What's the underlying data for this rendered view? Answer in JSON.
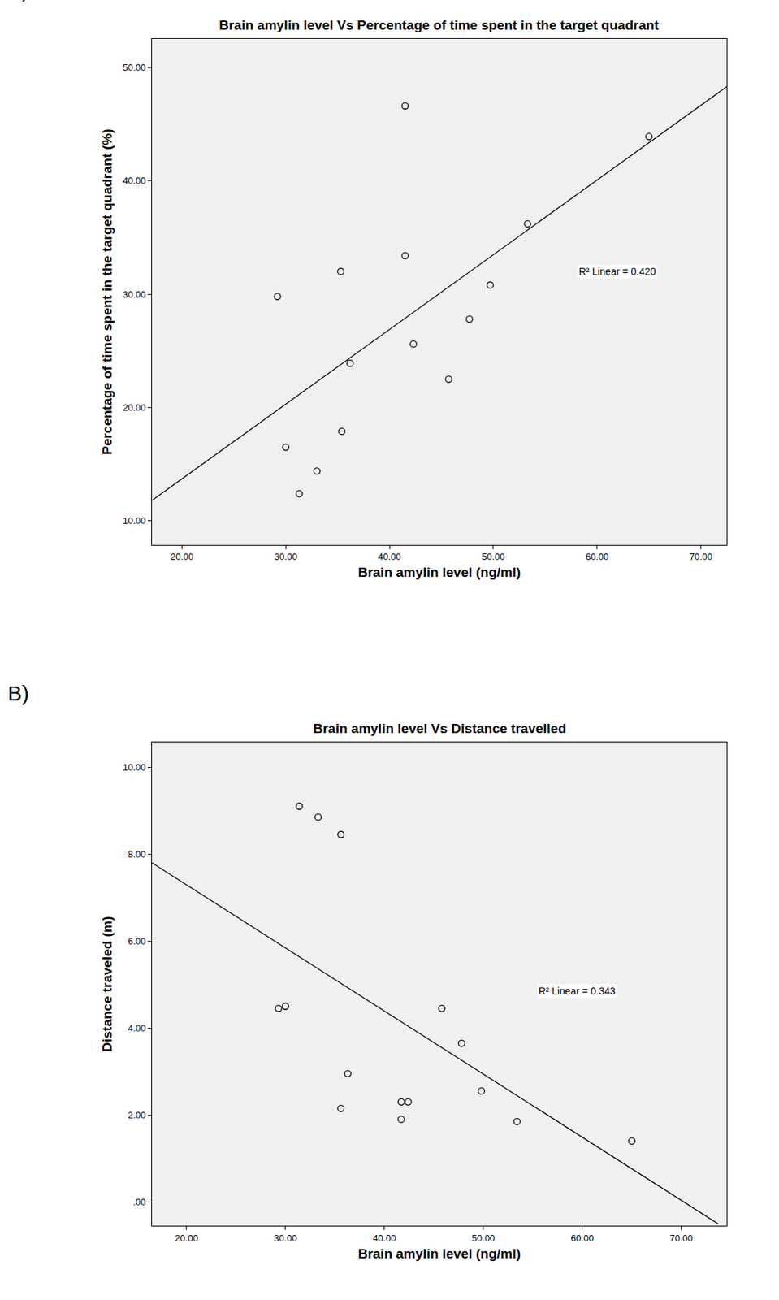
{
  "chart_data": [
    {
      "type": "scatter",
      "panel_label": "A)",
      "title": "Brain amylin level Vs Percentage of time spent in the target quadrant",
      "x_label": "Brain amylin level (ng/ml)",
      "y_label": "Percentage of time spent in the target quadrant (%)",
      "series": [
        {
          "type": "scatter",
          "marker": "open circle",
          "color": "#000000",
          "x": [
            29.2,
            30.0,
            31.3,
            33.0,
            35.3,
            35.4,
            36.2,
            41.5,
            41.5,
            42.3,
            45.7,
            47.7,
            49.7,
            53.3,
            65.0
          ],
          "values": [
            29.8,
            16.5,
            12.4,
            14.4,
            32.0,
            17.9,
            23.9,
            46.6,
            33.4,
            25.6,
            22.5,
            27.8,
            30.8,
            36.2,
            43.9
          ]
        },
        {
          "type": "line",
          "line_style": "solid",
          "color": "#000000",
          "x": [
            17.1,
            72.5
          ],
          "values": [
            11.8,
            48.3
          ]
        }
      ],
      "annotations": [
        "R² Linear = 0.420"
      ],
      "xlim": [
        17.1,
        72.5
      ],
      "ylim": [
        7.9,
        52.5
      ],
      "xticks": [
        {
          "value": 20,
          "label": "20.00"
        },
        {
          "value": 30,
          "label": "30.00"
        },
        {
          "value": 40,
          "label": "40.00"
        },
        {
          "value": 50,
          "label": "50.00"
        },
        {
          "value": 60,
          "label": "60.00"
        },
        {
          "value": 70,
          "label": "70.00"
        }
      ],
      "yticks": [
        {
          "value": 10,
          "label": "10.00"
        },
        {
          "value": 20,
          "label": "20.00"
        },
        {
          "value": 30,
          "label": "30.00"
        },
        {
          "value": 40,
          "label": "40.00"
        },
        {
          "value": 50,
          "label": "50.00"
        }
      ],
      "grid": false
    },
    {
      "type": "scatter",
      "panel_label": "B)",
      "title": "Brain amylin level Vs Distance travelled",
      "x_label": "Brain amylin level (ng/ml)",
      "y_label": "Distance traveled (m)",
      "series": [
        {
          "type": "scatter",
          "marker": "open circle",
          "color": "#000000",
          "x": [
            29.3,
            30.0,
            31.4,
            33.3,
            35.6,
            35.6,
            36.3,
            41.7,
            41.7,
            42.4,
            45.8,
            47.8,
            49.8,
            53.4,
            65.0
          ],
          "values": [
            4.45,
            4.5,
            9.1,
            8.85,
            8.45,
            2.15,
            2.95,
            2.3,
            1.9,
            2.3,
            4.45,
            3.65,
            2.55,
            1.85,
            1.4
          ]
        },
        {
          "type": "line",
          "line_style": "solid",
          "color": "#000000",
          "x": [
            16.5,
            73.7
          ],
          "values": [
            7.8,
            -0.5
          ]
        }
      ],
      "annotations": [
        "R² Linear = 0.343"
      ],
      "xlim": [
        16.5,
        74.6
      ],
      "ylim": [
        -0.55,
        10.57
      ],
      "xticks": [
        {
          "value": 20,
          "label": "20.00"
        },
        {
          "value": 30,
          "label": "30.00"
        },
        {
          "value": 40,
          "label": "40.00"
        },
        {
          "value": 50,
          "label": "50.00"
        },
        {
          "value": 60,
          "label": "60.00"
        },
        {
          "value": 70,
          "label": "70.00"
        }
      ],
      "yticks": [
        {
          "value": 0,
          "label": ".00"
        },
        {
          "value": 2,
          "label": "2.00"
        },
        {
          "value": 4,
          "label": "4.00"
        },
        {
          "value": 6,
          "label": "6.00"
        },
        {
          "value": 8,
          "label": "8.00"
        },
        {
          "value": 10,
          "label": "10.00"
        }
      ],
      "grid": false
    }
  ]
}
